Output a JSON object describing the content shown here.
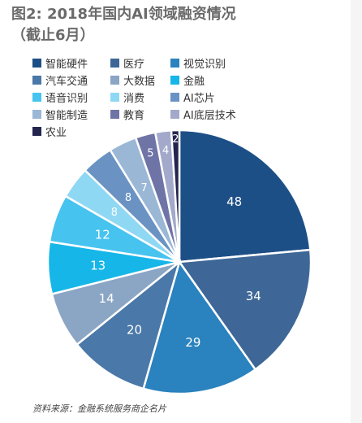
{
  "header": {
    "title": "图2: 2018年国内AI领域融资情况",
    "subtitle": "（截止6月）"
  },
  "chart_data": {
    "type": "pie",
    "title": "图2: 2018年国内AI领域融资情况（截止6月）",
    "categories": [
      "智能硬件",
      "医疗",
      "视觉识别",
      "汽车交通",
      "大数据",
      "金融",
      "语音识别",
      "消费",
      "AI芯片",
      "智能制造",
      "教育",
      "AI底层技术",
      "农业"
    ],
    "values": [
      48,
      34,
      29,
      20,
      14,
      13,
      12,
      8,
      8,
      7,
      5,
      4,
      2
    ],
    "labels": [
      "48",
      "34",
      "29",
      "20",
      "14",
      "13",
      "12",
      "8",
      "8",
      "7",
      "5",
      "4",
      "2"
    ],
    "colors": [
      "#1d4f87",
      "#3e6797",
      "#2a82be",
      "#4a78a8",
      "#8ba5c4",
      "#17b6e8",
      "#47c3ef",
      "#8fd8f4",
      "#6a93c3",
      "#9ab7d6",
      "#6f74a6",
      "#a3a9cb",
      "#23254f"
    ],
    "start_angle": "12 o'clock",
    "direction": "clockwise",
    "legend_position": "top"
  },
  "footer": {
    "source": "资料来源：金融系统服务商企名片"
  }
}
